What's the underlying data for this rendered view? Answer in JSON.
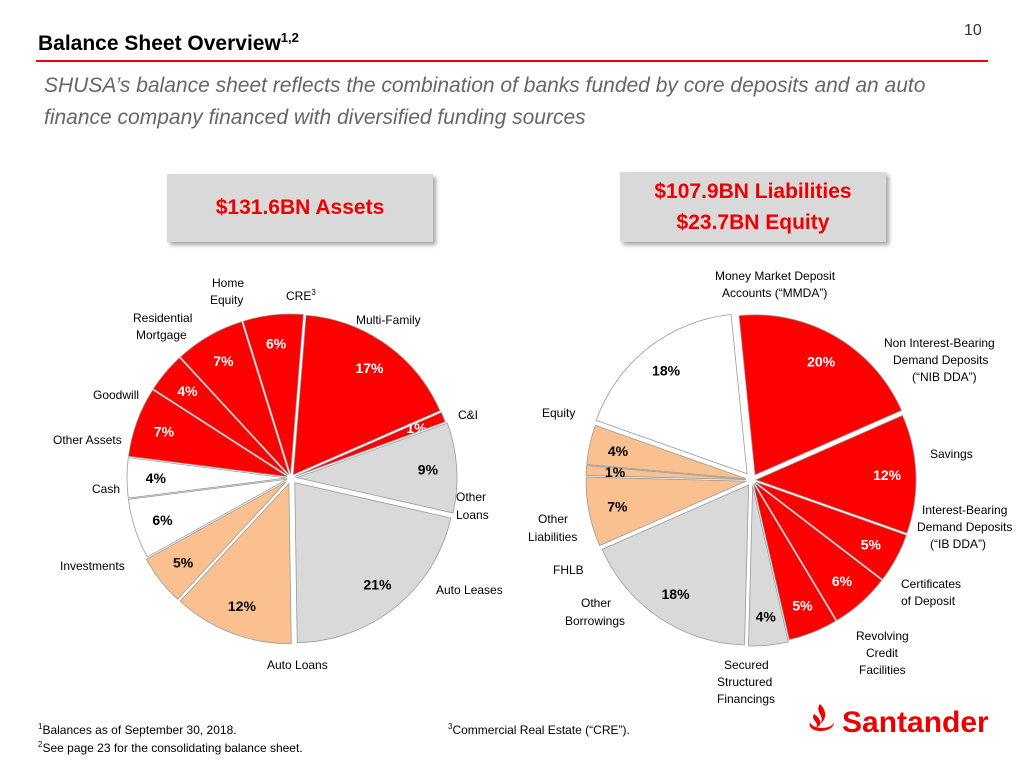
{
  "title": "Balance Sheet Overview",
  "title_sup": "1,2",
  "page_number": "10",
  "subtitle": "SHUSA’s balance sheet reflects the combination of banks funded by core deposits and an auto finance company financed with diversified funding sources",
  "assets_box": "$131.6BN Assets",
  "liabilities_box": {
    "line1": "$107.9BN Liabilities",
    "line2": "$23.7BN Equity"
  },
  "colors": {
    "accent": "#EC0000",
    "red": "#FF0000",
    "peach": "#FAC090",
    "grey": "#D9D9D9",
    "white": "#FFFFFF"
  },
  "chart_data": [
    {
      "type": "pie",
      "title": "$131.6BN Assets",
      "slices": [
        {
          "label": "C&I",
          "value": 17,
          "display": "17%",
          "color": "#FF0000"
        },
        {
          "label": "Other Loans",
          "value": 1,
          "display": "1%",
          "color": "#FF0000"
        },
        {
          "label": "Auto Leases",
          "value": 9,
          "display": "9%",
          "color": "#D9D9D9"
        },
        {
          "label": "Auto Loans",
          "value": 21,
          "display": "21%",
          "color": "#D9D9D9"
        },
        {
          "label": "Investments",
          "value": 12,
          "display": "12%",
          "color": "#FAC090"
        },
        {
          "label": "Cash",
          "value": 5,
          "display": "5%",
          "color": "#FAC090"
        },
        {
          "label": "Other Assets",
          "value": 6,
          "display": "6%",
          "color": "#FFFFFF"
        },
        {
          "label": "Goodwill",
          "value": 4,
          "display": "4%",
          "color": "#FFFFFF"
        },
        {
          "label": "Residential Mortgage",
          "value": 7,
          "display": "7%",
          "color": "#FF0000"
        },
        {
          "label": "Home Equity",
          "value": 4,
          "display": "4%",
          "color": "#FF0000"
        },
        {
          "label": "CRE3",
          "value": 7,
          "display": "7%",
          "color": "#FF0000"
        },
        {
          "label": "Multi-Family",
          "value": 6,
          "display": "6%",
          "color": "#FF0000"
        }
      ]
    },
    {
      "type": "pie",
      "title": "$107.9BN Liabilities $23.7BN Equity",
      "slices": [
        {
          "label": "Money Market Deposit Accounts (“MMDA”)",
          "value": 20,
          "display": "20%",
          "color": "#FF0000"
        },
        {
          "label": "Non Interest-Bearing Demand Deposits (“NIB DDA”)",
          "value": 12,
          "display": "12%",
          "color": "#FF0000"
        },
        {
          "label": "Savings",
          "value": 5,
          "display": "5%",
          "color": "#FF0000"
        },
        {
          "label": "Interest-Bearing Demand Deposits (“IB DDA”)",
          "value": 6,
          "display": "6%",
          "color": "#FF0000"
        },
        {
          "label": "Certificates of Deposit",
          "value": 5,
          "display": "5%",
          "color": "#FF0000"
        },
        {
          "label": "Revolving Credit Facilities",
          "value": 4,
          "display": "4%",
          "color": "#D9D9D9"
        },
        {
          "label": "Secured Structured Financings",
          "value": 18,
          "display": "18%",
          "color": "#D9D9D9"
        },
        {
          "label": "Other Borrowings",
          "value": 7,
          "display": "7%",
          "color": "#FAC090"
        },
        {
          "label": "FHLB",
          "value": 1,
          "display": "1%",
          "color": "#FAC090"
        },
        {
          "label": "Other Liabilities",
          "value": 4,
          "display": "4%",
          "color": "#FAC090"
        },
        {
          "label": "Equity",
          "value": 18,
          "display": "18%",
          "color": "#FFFFFF"
        }
      ]
    }
  ],
  "category_labels": {
    "assets": {
      "home_equity": [
        "Home",
        "Equity"
      ],
      "cre": "CRE",
      "cre_sup": "3",
      "residential": [
        "Residential",
        "Mortgage"
      ],
      "multifamily": "Multi-Family",
      "goodwill": "Goodwill",
      "ci": "C&I",
      "other_assets": "Other Assets",
      "cash": "Cash",
      "other_loans": [
        "Other",
        "Loans"
      ],
      "investments": "Investments",
      "auto_leases": "Auto Leases",
      "auto_loans": "Auto Loans"
    },
    "liabilities": {
      "mmda": [
        "Money Market Deposit",
        "Accounts (“MMDA”)"
      ],
      "nib": [
        "Non Interest-Bearing",
        "Demand Deposits",
        "(“NIB DDA”)"
      ],
      "equity": "Equity",
      "savings": "Savings",
      "ib": [
        "Interest-Bearing",
        "Demand Deposits",
        "(“IB DDA”)"
      ],
      "other_liab": [
        "Other",
        "Liabilities"
      ],
      "fhlb": "FHLB",
      "cd": [
        "Certificates",
        "of Deposit"
      ],
      "other_borrow": [
        "Other",
        "Borrowings"
      ],
      "revolving": [
        "Revolving",
        "Credit",
        "Facilities"
      ],
      "secured": [
        "Secured",
        "Structured",
        "Financings"
      ]
    }
  },
  "footnotes": {
    "f1_num": "1",
    "f1": "Balances as of September 30, 2018.",
    "f2_num": "2",
    "f2": "See page 23 for the consolidating balance sheet.",
    "f3_num": "3",
    "f3": "Commercial Real Estate (“CRE”)."
  },
  "logo_text": "Santander"
}
